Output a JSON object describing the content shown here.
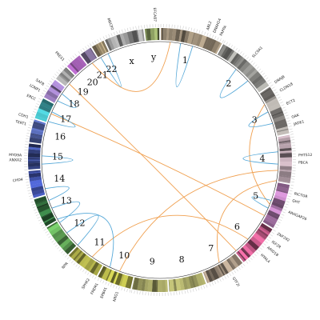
{
  "chromosomes": [
    "1",
    "2",
    "3",
    "4",
    "5",
    "6",
    "7",
    "8",
    "9",
    "10",
    "11",
    "12",
    "13",
    "14",
    "15",
    "16",
    "17",
    "18",
    "19",
    "20",
    "21",
    "22",
    "x",
    "y"
  ],
  "genes": [
    "EFCAB7",
    "ABL2",
    "DNAH14",
    "PAPPA",
    "SLC9A1",
    "DNAJB",
    "CLDN18",
    "ECT2",
    "GAK",
    "JADE1",
    "PHTS12",
    "PBCA",
    "RICTOR",
    "GHT",
    "ARHGAP26",
    "ZNF292",
    "IGF2R",
    "ARID1B",
    "HYAL4",
    "GTF2I",
    "NRG1",
    "EPB41",
    "FREM1",
    "SPHK2",
    "NPR",
    "CHD4",
    "ANXA2",
    "MYO9A",
    "TERT1",
    "CDH1",
    "ERCC",
    "LONP1",
    "SAFB",
    "PREX1",
    "MECP2"
  ]
}
